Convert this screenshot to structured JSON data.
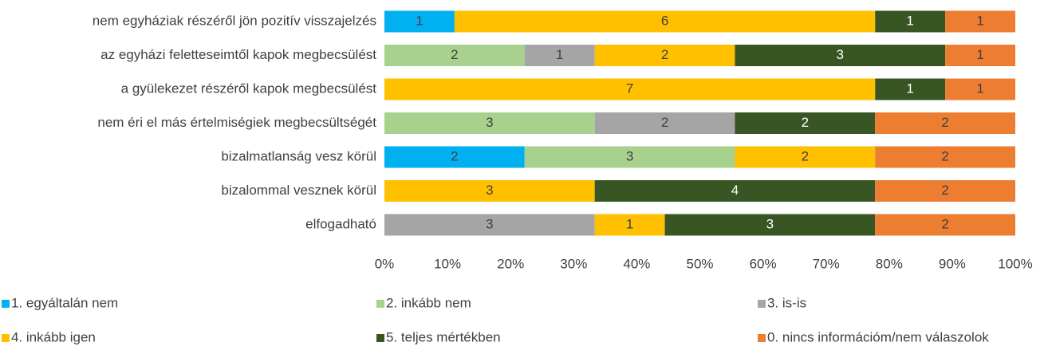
{
  "chart_data": {
    "type": "bar",
    "orientation": "horizontal",
    "stacking": "percent",
    "categories": [
      "nem egyháziak részéről jön pozitív visszajelzés",
      "az egyházi feletteseimtől kapok megbecsülést",
      "a gyülekezet részéről kapok megbecsülést",
      "nem éri el más értelmiségiek megbecsültségét",
      "bizalmatlanság vesz körül",
      "bizalommal vesznek körül",
      "elfogadható"
    ],
    "series": [
      {
        "name": "1. egyáltalán nem",
        "color": "#00b0f0",
        "label_color": "#404040",
        "values": [
          1,
          null,
          null,
          null,
          2,
          null,
          null
        ]
      },
      {
        "name": "2. inkább nem",
        "color": "#a9d18e",
        "label_color": "#404040",
        "values": [
          null,
          2,
          null,
          3,
          3,
          null,
          null
        ]
      },
      {
        "name": "3. is-is",
        "color": "#a5a5a5",
        "label_color": "#404040",
        "values": [
          null,
          1,
          null,
          2,
          null,
          null,
          3
        ]
      },
      {
        "name": "4. inkább igen",
        "color": "#ffc000",
        "label_color": "#404040",
        "values": [
          6,
          2,
          7,
          null,
          2,
          3,
          1
        ]
      },
      {
        "name": "5. teljes mértékben",
        "color": "#375623",
        "label_color": "#ffffff",
        "values": [
          1,
          3,
          1,
          2,
          null,
          4,
          3
        ]
      },
      {
        "name": "0. nincs információm/nem válaszolok",
        "color": "#ed7d31",
        "label_color": "#404040",
        "values": [
          1,
          1,
          1,
          2,
          2,
          2,
          2
        ]
      }
    ],
    "xlim": [
      0,
      100
    ],
    "xticks": [
      {
        "value": 0,
        "label": "0%"
      },
      {
        "value": 10,
        "label": "10%"
      },
      {
        "value": 20,
        "label": "20%"
      },
      {
        "value": 30,
        "label": "30%"
      },
      {
        "value": 40,
        "label": "40%"
      },
      {
        "value": 50,
        "label": "50%"
      },
      {
        "value": 60,
        "label": "60%"
      },
      {
        "value": 70,
        "label": "70%"
      },
      {
        "value": 80,
        "label": "80%"
      },
      {
        "value": 90,
        "label": "90%"
      },
      {
        "value": 100,
        "label": "100%"
      }
    ],
    "grid": false,
    "legend": "bottom"
  }
}
